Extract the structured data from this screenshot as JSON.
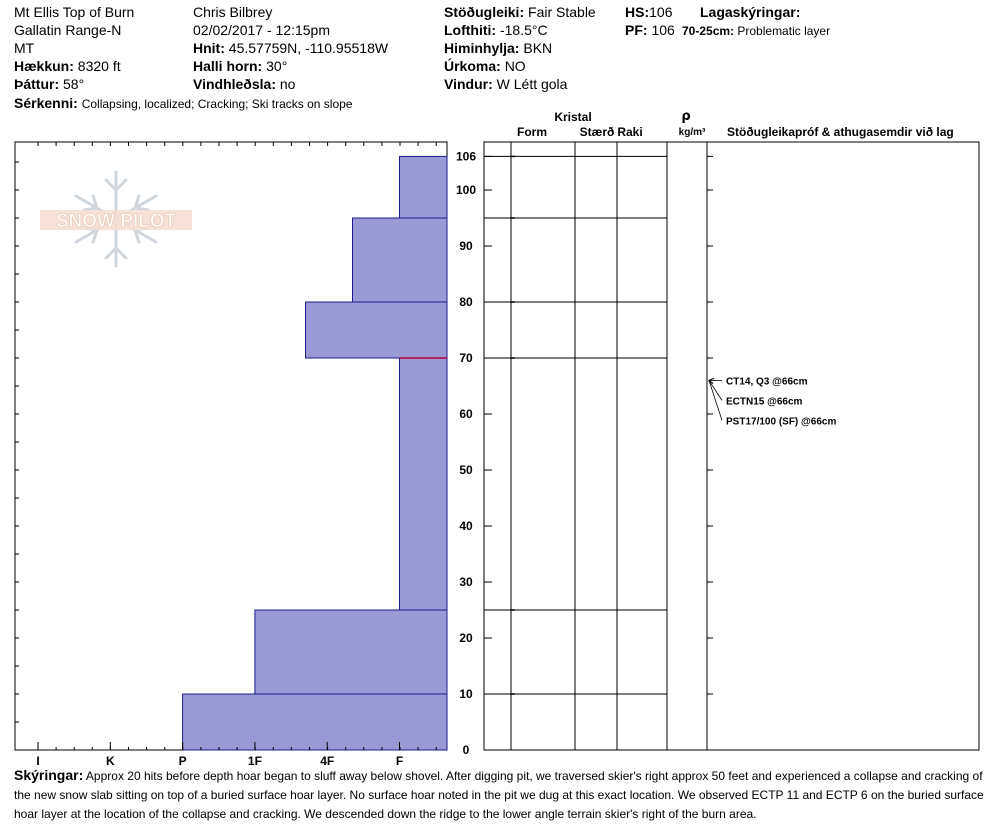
{
  "header": {
    "location": "Mt Ellis Top of Burn",
    "range": "Gallatin Range-N",
    "state": "MT",
    "elevation_label": "Hækkun:",
    "elevation": "8320 ft",
    "aspect_label": "Þáttur:",
    "aspect": "58°",
    "features_label": "Sérkenni:",
    "features": "Collapsing, localized;  Cracking;  Ski tracks on slope",
    "observer": "Chris Bilbrey",
    "datetime": "02/02/2017 - 12:15pm",
    "coords_label": "Hnit:",
    "coords": "45.57759N, -110.95518W",
    "slope_label": "Halli horn:",
    "slope": "30°",
    "wind_loading_label": "Vindhleðsla:",
    "wind_loading": "no",
    "stability_label": "Stöðugleiki:",
    "stability": "Fair Stable",
    "air_temp_label": "Lofthiti:",
    "air_temp": "-18.5°C",
    "sky_label": "Himinhylja:",
    "sky": "BKN",
    "precip_label": "Úrkoma:",
    "precip": "NO",
    "wind_label": "Vindur:",
    "wind": "W Létt gola",
    "hs_label": "HS:",
    "hs": "106",
    "pf_label": "PF:",
    "pf": "106",
    "layer_notes_label": "Lagaskýringar:",
    "layer_note_range": "70-25cm:",
    "layer_note_text": "Problematic layer"
  },
  "logo": {
    "text": "SNOW PILOT"
  },
  "columns": {
    "kristal": "Kristal",
    "form": "Form",
    "size": "Stærð",
    "moisture": "Raki",
    "rho": "ρ",
    "density_unit": "kg/m³",
    "tests": "Stöðugleikapróf & athugasemdir við lag"
  },
  "notes": {
    "label": "Skýringar:",
    "text": "Approx 20 hits before depth hoar began to sluff away below shovel. After digging pit, we traversed skier's right approx 50 feet and experienced a collapse and cracking of the new snow slab sitting on top of a buried surface hoar layer. No surface hoar noted in the pit we dug at this exact location. We observed ECTP 11 and ECTP 6 on the buried surface hoar layer at the location of the collapse and cracking. We descended down the ridge to the lower angle terrain skier's right of the burn area."
  },
  "chart_data": {
    "type": "bar",
    "subtype": "snow-hardness-profile",
    "hardness_scale": [
      "I",
      "K",
      "P",
      "1F",
      "4F",
      "F"
    ],
    "y_ticks": [
      0,
      10,
      20,
      30,
      40,
      50,
      60,
      70,
      80,
      90,
      100,
      106
    ],
    "ylim": [
      0,
      106
    ],
    "layers": [
      {
        "top": 106,
        "bottom": 95,
        "hardness_index": 5
      },
      {
        "top": 95,
        "bottom": 80,
        "hardness_index": 4.35
      },
      {
        "top": 80,
        "bottom": 70,
        "hardness_index": 3.7
      },
      {
        "top": 70,
        "bottom": 25,
        "hardness_index": 5
      },
      {
        "top": 25,
        "bottom": 10,
        "hardness_index": 3
      },
      {
        "top": 10,
        "bottom": 0,
        "hardness_index": 2
      }
    ],
    "problem_layer_height": 70,
    "tests": [
      {
        "label": "CT14, Q3 @66cm",
        "depth": 66
      },
      {
        "label": "ECTN15 @66cm",
        "depth": 66
      },
      {
        "label": "PST17/100 (SF) @66cm",
        "depth": 66
      }
    ],
    "colors": {
      "bar_fill": "#9999d6",
      "bar_stroke": "#1c1c8c",
      "problem_line": "#b0003a"
    }
  }
}
